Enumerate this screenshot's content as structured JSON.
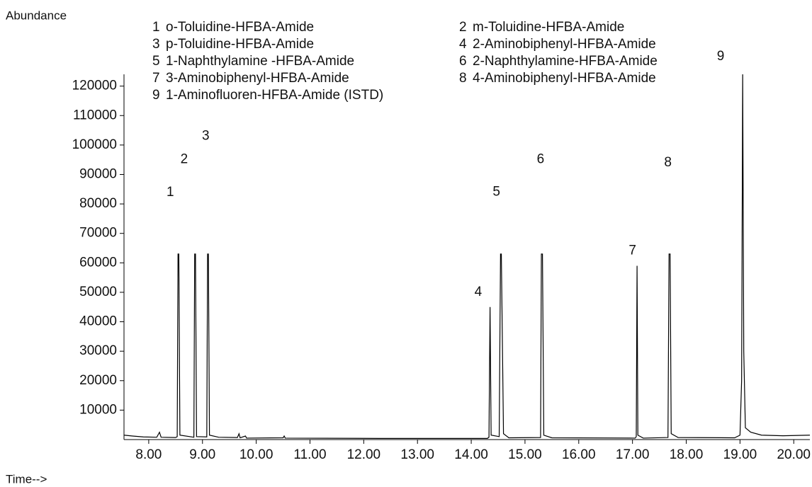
{
  "chart_data": {
    "type": "line",
    "y_label": "Abundance",
    "x_label": "Time-->",
    "color": "#000000",
    "xlim": [
      7.54,
      20.3
    ],
    "ylim": [
      0,
      124000
    ],
    "xticks": [
      {
        "value": 8,
        "label": "8.00"
      },
      {
        "value": 9,
        "label": "9.00"
      },
      {
        "value": 10,
        "label": "10.00"
      },
      {
        "value": 11,
        "label": "11.00"
      },
      {
        "value": 12,
        "label": "12.00"
      },
      {
        "value": 13,
        "label": "13.00"
      },
      {
        "value": 14,
        "label": "14.00"
      },
      {
        "value": 15,
        "label": "15.00"
      },
      {
        "value": 16,
        "label": "16.00"
      },
      {
        "value": 17,
        "label": "17.00"
      },
      {
        "value": 18,
        "label": "18.00"
      },
      {
        "value": 19,
        "label": "19.00"
      },
      {
        "value": 20,
        "label": "20.00"
      }
    ],
    "yticks": [
      10000,
      20000,
      30000,
      40000,
      50000,
      60000,
      70000,
      80000,
      90000,
      100000,
      110000,
      120000
    ],
    "x": [
      7.54,
      7.7,
      7.9,
      8.15,
      8.2,
      8.23,
      8.5,
      8.53,
      8.545,
      8.56,
      8.58,
      8.84,
      8.855,
      8.87,
      8.89,
      9.08,
      9.095,
      9.11,
      9.13,
      9.3,
      9.65,
      9.68,
      9.7,
      9.8,
      9.82,
      10.5,
      10.52,
      10.54,
      12.3,
      14.3,
      14.33,
      14.35,
      14.37,
      14.52,
      14.545,
      14.56,
      14.6,
      14.7,
      15.29,
      15.305,
      15.325,
      15.35,
      15.5,
      17.05,
      17.07,
      17.085,
      17.1,
      17.2,
      17.66,
      17.68,
      17.7,
      17.72,
      17.85,
      18.9,
      19.0,
      19.03,
      19.05,
      19.07,
      19.1,
      19.2,
      19.4,
      19.8,
      20.3
    ],
    "values": [
      1500,
      1200,
      900,
      800,
      2500,
      800,
      700,
      1000,
      63000,
      63000,
      1500,
      800,
      63000,
      63000,
      1000,
      900,
      63000,
      63000,
      1500,
      800,
      700,
      2000,
      600,
      1200,
      500,
      600,
      1200,
      500,
      400,
      400,
      800,
      45000,
      1500,
      1000,
      63000,
      63000,
      2000,
      600,
      700,
      63000,
      63000,
      1500,
      600,
      500,
      1000,
      59000,
      1500,
      500,
      700,
      63000,
      63000,
      2000,
      700,
      600,
      1500,
      20000,
      124000,
      30000,
      4000,
      2500,
      1500,
      1300,
      1500
    ],
    "peak_labels": [
      {
        "label": "1",
        "x": 8.4,
        "y": 83900
      },
      {
        "label": "2",
        "x": 8.66,
        "y": 95000
      },
      {
        "label": "3",
        "x": 9.06,
        "y": 103000
      },
      {
        "label": "4",
        "x": 14.13,
        "y": 50000
      },
      {
        "label": "5",
        "x": 14.47,
        "y": 84000
      },
      {
        "label": "6",
        "x": 15.29,
        "y": 95000
      },
      {
        "label": "7",
        "x": 17.0,
        "y": 64000
      },
      {
        "label": "8",
        "x": 17.66,
        "y": 94000
      },
      {
        "label": "9",
        "x": 18.64,
        "y": 130000
      }
    ],
    "legend": [
      {
        "number": "1",
        "name": "o-Toluidine-HFBA-Amide"
      },
      {
        "number": "2",
        "name": "m-Toluidine-HFBA-Amide"
      },
      {
        "number": "3",
        "name": "p-Toluidine-HFBA-Amide"
      },
      {
        "number": "4",
        "name": "2-Aminobiphenyl-HFBA-Amide"
      },
      {
        "number": "5",
        "name": "1-Naphthylamine -HFBA-Amide"
      },
      {
        "number": "6",
        "name": "2-Naphthylamine-HFBA-Amide"
      },
      {
        "number": "7",
        "name": "3-Aminobiphenyl-HFBA-Amide"
      },
      {
        "number": "8",
        "name": "4-Aminobiphenyl-HFBA-Amide"
      },
      {
        "number": "9",
        "name": "1-Aminofluoren-HFBA-Amide  (ISTD)"
      }
    ]
  }
}
